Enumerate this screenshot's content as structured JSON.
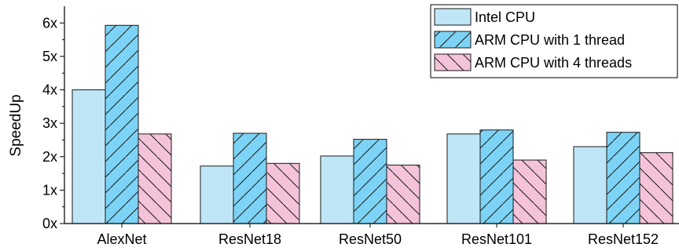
{
  "chart_data": {
    "type": "bar",
    "categories": [
      "AlexNet",
      "ResNet18",
      "ResNet50",
      "ResNet101",
      "ResNet152"
    ],
    "series": [
      {
        "name": "Intel  CPU",
        "values": [
          4.0,
          1.72,
          2.02,
          2.68,
          2.3
        ],
        "color": "#bfe6f7",
        "pattern": "none"
      },
      {
        "name": "ARM CPU with 1 thread",
        "values": [
          5.93,
          2.7,
          2.52,
          2.8,
          2.73
        ],
        "color": "#7dd3f5",
        "pattern": "forward-diagonal"
      },
      {
        "name": "ARM CPU with 4 threads",
        "values": [
          2.68,
          1.8,
          1.75,
          1.9,
          2.12
        ],
        "color": "#f5c3d9",
        "pattern": "back-diagonal"
      }
    ],
    "ylabel": "SpeedUp",
    "xlabel": "",
    "ylim": [
      0,
      6.5
    ],
    "yticks": [
      0,
      1,
      2,
      3,
      4,
      5,
      6
    ],
    "ytick_labels": [
      "0x",
      "1x",
      "2x",
      "3x",
      "4x",
      "5x",
      "6x"
    ],
    "legend_position": "top-right",
    "grid": false
  }
}
